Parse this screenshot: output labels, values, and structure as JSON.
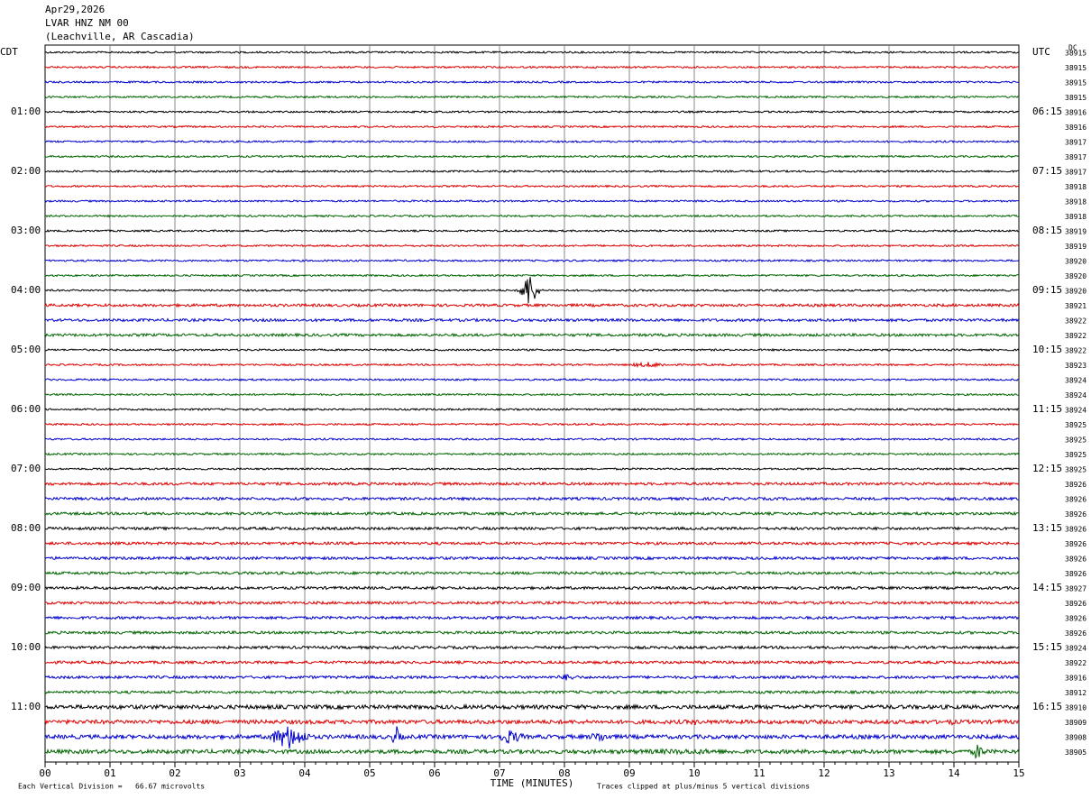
{
  "header": {
    "date": "Apr29,2026",
    "station": "LVAR HNZ NM 00",
    "location": "(Leachville, AR Cascadia)"
  },
  "left_labels": [
    "CDT",
    "01:00",
    "02:00",
    "03:00",
    "04:00",
    "05:00",
    "06:00",
    "07:00",
    "08:00",
    "09:00",
    "10:00",
    "11:00"
  ],
  "right_labels": [
    "UTC",
    "06:15",
    "07:15",
    "08:15",
    "09:15",
    "10:15",
    "11:15",
    "12:15",
    "13:15",
    "14:15",
    "15:15",
    "16:15"
  ],
  "dc_label": "DC",
  "row_counts": [
    "38915",
    "38915",
    "38915",
    "38915",
    "38916",
    "38916",
    "38917",
    "38917",
    "38917",
    "38918",
    "38918",
    "38918",
    "38919",
    "38919",
    "38920",
    "38920",
    "38920",
    "38921",
    "38922",
    "38922",
    "38922",
    "38923",
    "38924",
    "38924",
    "38924",
    "38925",
    "38925",
    "38925",
    "38925",
    "38926",
    "38926",
    "38926",
    "38926",
    "38926",
    "38926",
    "38926",
    "38927",
    "38926",
    "38926",
    "38926",
    "38924",
    "38922",
    "38916",
    "38912",
    "38910",
    "38909",
    "38908",
    "38905"
  ],
  "x_axis": {
    "ticks": [
      "00",
      "01",
      "02",
      "03",
      "04",
      "05",
      "06",
      "07",
      "08",
      "09",
      "10",
      "11",
      "12",
      "13",
      "14",
      "15"
    ],
    "title": "TIME (MINUTES)"
  },
  "footer": {
    "scale": "Each Vertical Division =   66.67 microvolts",
    "clip": "Traces clipped at plus/minus 5 vertical divisions"
  },
  "trace_colors": [
    "#000000",
    "#dd0000",
    "#0000cc",
    "#006400"
  ]
}
